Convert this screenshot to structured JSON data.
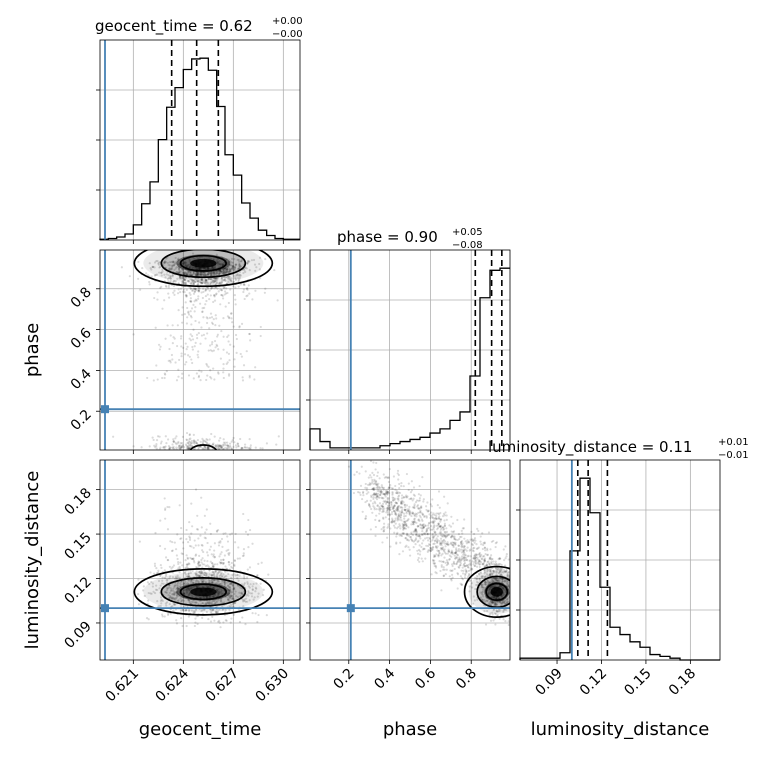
{
  "chart_data": {
    "type": "corner",
    "parameters": [
      "geocent_time",
      "phase",
      "luminosity_distance"
    ],
    "truths": {
      "geocent_time": 0.6193,
      "phase": 0.21,
      "luminosity_distance": 0.1
    },
    "axes": {
      "geocent_time": {
        "range": [
          0.619,
          0.631
        ],
        "ticks": [
          0.621,
          0.624,
          0.627,
          0.63
        ],
        "tick_labels": [
          "0.621",
          "0.624",
          "0.627",
          "0.630"
        ]
      },
      "phase": {
        "range": [
          0.01,
          0.99
        ],
        "ticks": [
          0.2,
          0.4,
          0.6,
          0.8
        ],
        "tick_labels": [
          "0.2",
          "0.4",
          "0.6",
          "0.8"
        ]
      },
      "luminosity_distance": {
        "range": [
          0.065,
          0.2
        ],
        "ticks": [
          0.09,
          0.12,
          0.15,
          0.18
        ],
        "tick_labels": [
          "0.09",
          "0.12",
          "0.15",
          "0.18"
        ]
      }
    },
    "titles": [
      {
        "param": "geocent_time",
        "label": "geocent_time = 0.62",
        "sup": "+0.00",
        "sub": "−0.00"
      },
      {
        "param": "phase",
        "label": "phase = 0.90",
        "sup": "+0.05",
        "sub": "−0.08"
      },
      {
        "param": "luminosity_distance",
        "label": "luminosity_distance = 0.11",
        "sup": "+0.01",
        "sub": "−0.01"
      }
    ],
    "histograms": {
      "geocent_time": {
        "bin_start": 0.619,
        "bin_width": 0.0005,
        "counts": [
          1,
          2,
          4,
          8,
          20,
          48,
          77,
          133,
          176,
          202,
          226,
          240,
          241,
          225,
          177,
          113,
          86,
          49,
          29,
          13,
          6,
          2,
          1,
          1
        ]
      },
      "phase": {
        "bin_start": 0.01,
        "bin_width": 0.049,
        "counts": [
          10,
          4,
          1,
          1,
          1,
          1,
          1,
          2,
          3,
          4,
          5,
          6,
          8,
          10,
          14,
          18,
          35,
          72,
          85,
          86
        ]
      },
      "luminosity_distance": {
        "bin_start": 0.065,
        "bin_width": 0.00675,
        "counts": [
          1,
          1,
          1,
          1,
          4,
          60,
          100,
          81,
          40,
          18,
          14,
          10,
          7,
          3,
          2,
          1,
          0,
          0,
          0,
          0
        ]
      }
    },
    "quantiles": {
      "geocent_time": [
        0.6233,
        0.6248,
        0.6261
      ],
      "phase": [
        0.82,
        0.9,
        0.95
      ],
      "luminosity_distance": [
        0.104,
        0.111,
        0.124
      ]
    },
    "posterior_peak": {
      "geocent_time": 0.6252,
      "phase": 0.925,
      "luminosity_distance": 0.111
    }
  }
}
